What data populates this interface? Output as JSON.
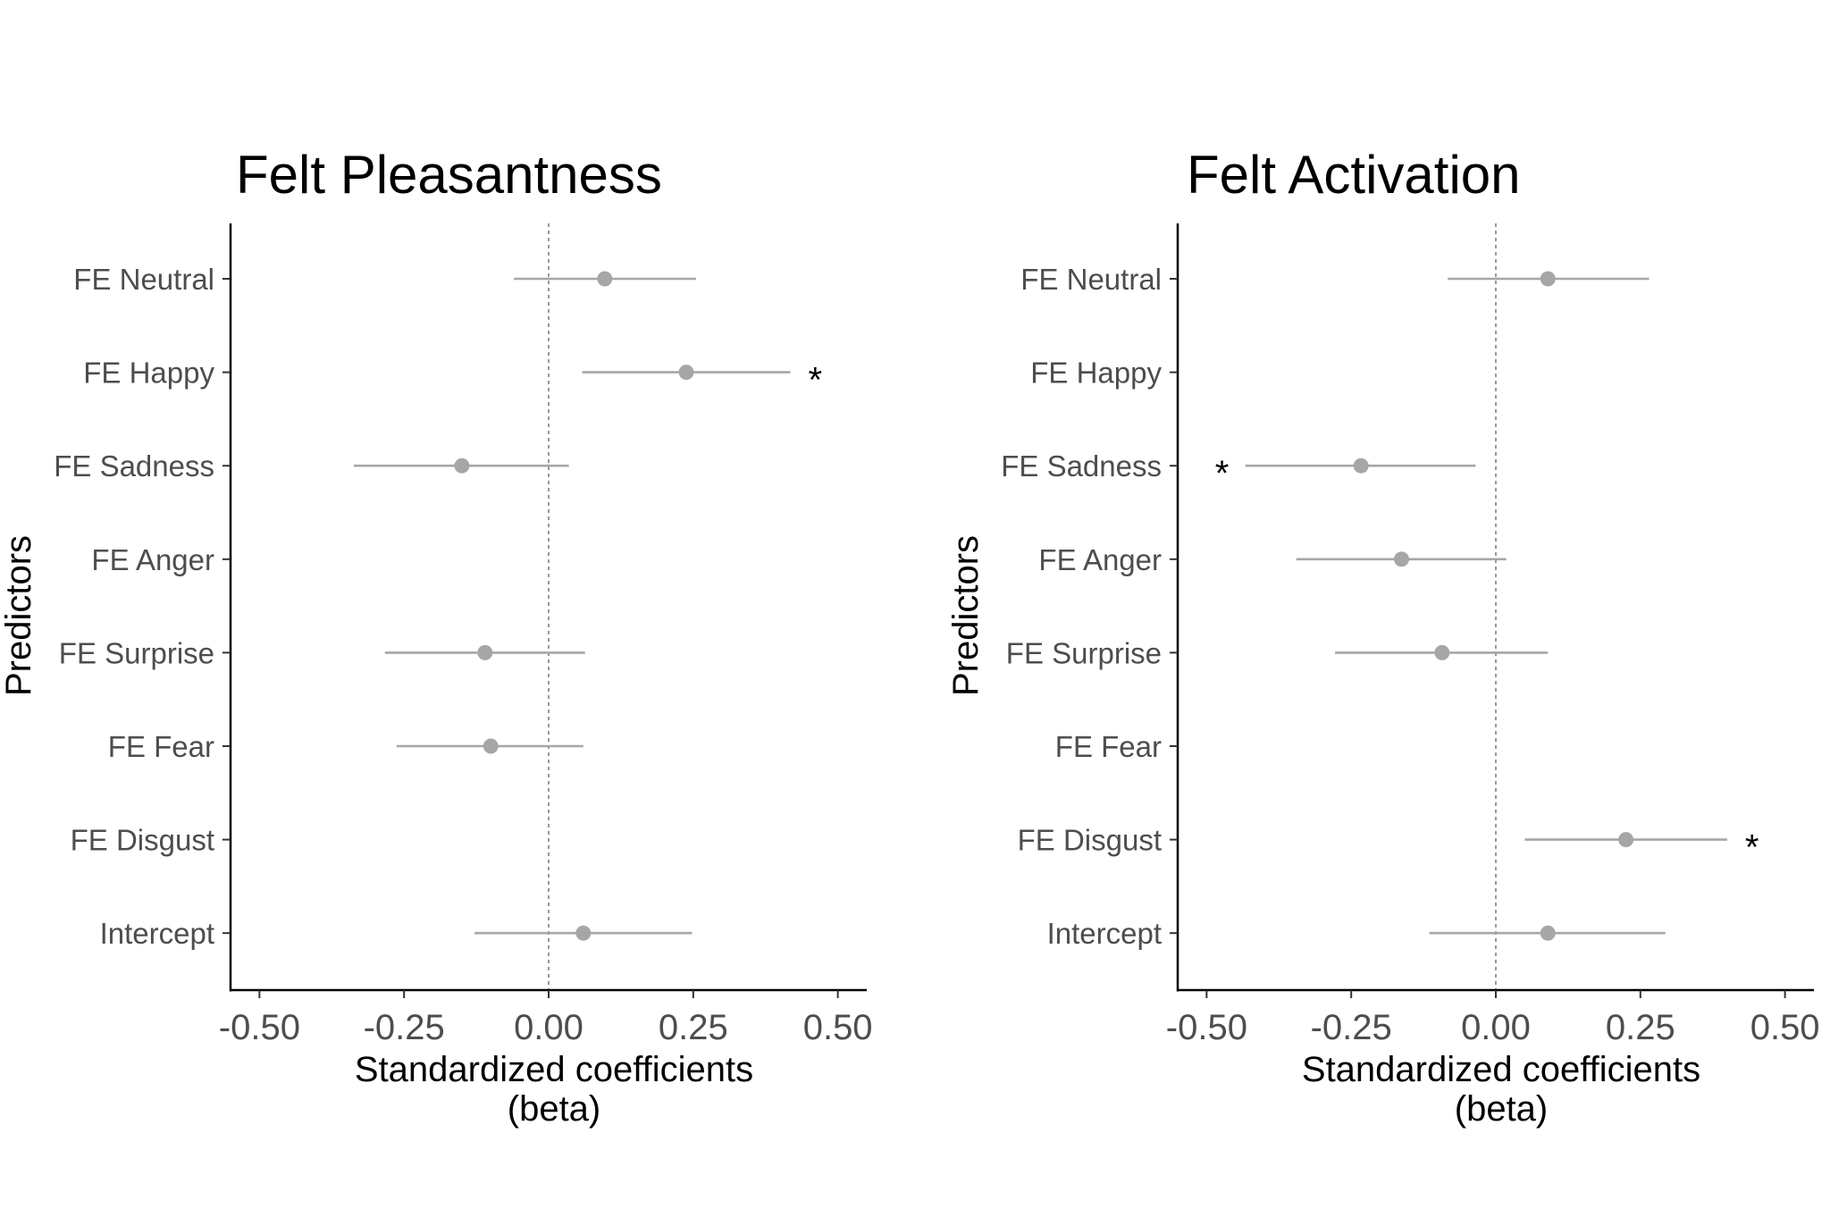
{
  "chart_data": [
    {
      "type": "forest",
      "title": "Felt Pleasantness",
      "xlabel": "Standardized coefficients\n(beta)",
      "ylabel": "Predictors",
      "xlim": [
        -0.55,
        0.55
      ],
      "xticks": [
        -0.5,
        -0.25,
        0.0,
        0.25,
        0.5
      ],
      "xtick_labels": [
        "-0.50",
        "-0.25",
        "0.00",
        "0.25",
        "0.50"
      ],
      "reference_line": 0,
      "grid": false,
      "categories": [
        "FE Neutral",
        "FE Happy",
        "FE Sadness",
        "FE Anger",
        "FE Surprise",
        "FE Fear",
        "FE Disgust",
        "Intercept"
      ],
      "estimates": [
        {
          "predictor": "FE Neutral",
          "beta": 0.097,
          "ci_low": -0.06,
          "ci_high": 0.255,
          "sig": ""
        },
        {
          "predictor": "FE Happy",
          "beta": 0.238,
          "ci_low": 0.058,
          "ci_high": 0.418,
          "sig": "*"
        },
        {
          "predictor": "FE Sadness",
          "beta": -0.15,
          "ci_low": -0.337,
          "ci_high": 0.035,
          "sig": ""
        },
        {
          "predictor": "FE Surprise",
          "beta": -0.11,
          "ci_low": -0.283,
          "ci_high": 0.063,
          "sig": ""
        },
        {
          "predictor": "FE Fear",
          "beta": -0.1,
          "ci_low": -0.263,
          "ci_high": 0.06,
          "sig": ""
        },
        {
          "predictor": "Intercept",
          "beta": 0.06,
          "ci_low": -0.128,
          "ci_high": 0.248,
          "sig": ""
        }
      ]
    },
    {
      "type": "forest",
      "title": "Felt Activation",
      "xlabel": "Standardized coefficients\n(beta)",
      "ylabel": "Predictors",
      "xlim": [
        -0.55,
        0.55
      ],
      "xticks": [
        -0.5,
        -0.25,
        0.0,
        0.25,
        0.5
      ],
      "xtick_labels": [
        "-0.50",
        "-0.25",
        "0.00",
        "0.25",
        "0.50"
      ],
      "reference_line": 0,
      "grid": false,
      "categories": [
        "FE Neutral",
        "FE Happy",
        "FE Sadness",
        "FE Anger",
        "FE Surprise",
        "FE Fear",
        "FE Disgust",
        "Intercept"
      ],
      "estimates": [
        {
          "predictor": "FE Neutral",
          "beta": 0.09,
          "ci_low": -0.083,
          "ci_high": 0.265,
          "sig": ""
        },
        {
          "predictor": "FE Sadness",
          "beta": -0.233,
          "ci_low": -0.433,
          "ci_high": -0.035,
          "sig": "*"
        },
        {
          "predictor": "FE Anger",
          "beta": -0.163,
          "ci_low": -0.345,
          "ci_high": 0.018,
          "sig": ""
        },
        {
          "predictor": "FE Surprise",
          "beta": -0.093,
          "ci_low": -0.278,
          "ci_high": 0.09,
          "sig": ""
        },
        {
          "predictor": "FE Disgust",
          "beta": 0.225,
          "ci_low": 0.05,
          "ci_high": 0.4,
          "sig": "*"
        },
        {
          "predictor": "Intercept",
          "beta": 0.09,
          "ci_low": -0.115,
          "ci_high": 0.293,
          "sig": ""
        }
      ]
    }
  ]
}
